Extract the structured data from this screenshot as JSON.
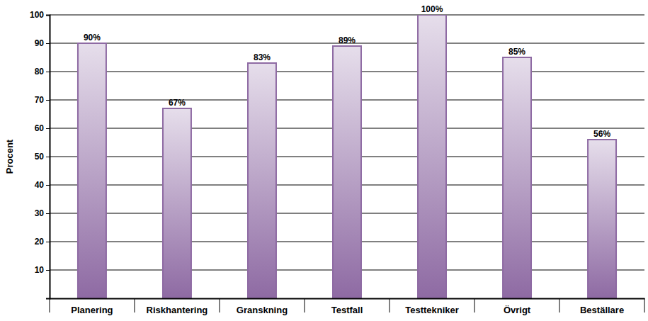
{
  "chart_data": {
    "type": "bar",
    "y_label": "Procent",
    "categories": [
      "Planering",
      "Riskhantering",
      "Granskning",
      "Testfall",
      "Testtekniker",
      "Övrigt",
      "Beställare"
    ],
    "values": [
      90,
      67,
      83,
      89,
      100,
      85,
      56
    ],
    "value_labels": [
      "90%",
      "67%",
      "83%",
      "89%",
      "100%",
      "85%",
      "56%"
    ],
    "color": "#8e6aa3",
    "ylim": [
      0,
      100
    ],
    "yticks": [
      10,
      20,
      30,
      40,
      50,
      60,
      70,
      80,
      90,
      100
    ],
    "grid": true,
    "data_labels": true
  }
}
